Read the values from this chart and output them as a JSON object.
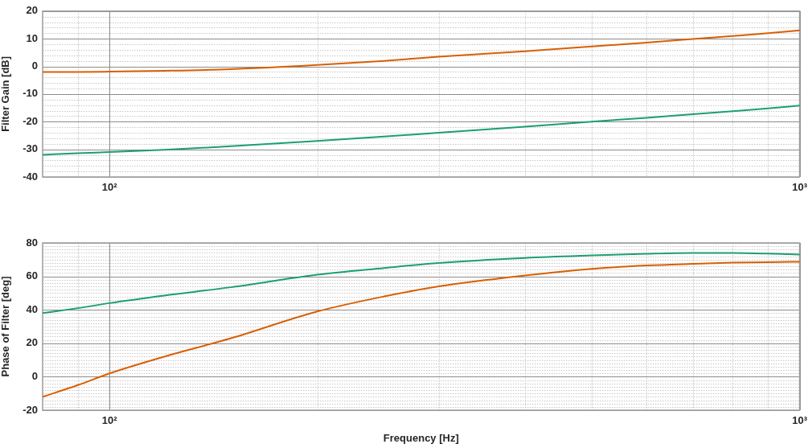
{
  "chart_data": [
    {
      "type": "line",
      "ylabel": "Filter Gain [dB]",
      "log": "x",
      "grid": true,
      "legend": false,
      "marker": "none",
      "line_style": "solid",
      "x": [
        80,
        90,
        100,
        120,
        150,
        200,
        250,
        300,
        400,
        500,
        600,
        700,
        800,
        900,
        1000
      ],
      "xlim": [
        80,
        1000
      ],
      "xticks": [
        {
          "value": 80,
          "label": null
        },
        {
          "value": 90,
          "label": null
        },
        {
          "value": 100,
          "label": "10²"
        },
        {
          "value": 200,
          "label": null
        },
        {
          "value": 300,
          "label": null
        },
        {
          "value": 400,
          "label": null
        },
        {
          "value": 500,
          "label": null
        },
        {
          "value": 600,
          "label": null
        },
        {
          "value": 700,
          "label": null
        },
        {
          "value": 800,
          "label": null
        },
        {
          "value": 900,
          "label": null
        },
        {
          "value": 1000,
          "label": "10³"
        }
      ],
      "ylim": [
        -40,
        20
      ],
      "yticks": [
        -40,
        {
          "value": -38,
          "label": null
        },
        {
          "value": -36,
          "label": null
        },
        {
          "value": -34,
          "label": null
        },
        {
          "value": -32,
          "label": null
        },
        -30,
        {
          "value": -28,
          "label": null
        },
        {
          "value": -26,
          "label": null
        },
        {
          "value": -24,
          "label": null
        },
        {
          "value": -22,
          "label": null
        },
        -20,
        {
          "value": -18,
          "label": null
        },
        {
          "value": -16,
          "label": null
        },
        {
          "value": -14,
          "label": null
        },
        {
          "value": -12,
          "label": null
        },
        -10,
        {
          "value": -8,
          "label": null
        },
        {
          "value": -6,
          "label": null
        },
        {
          "value": -4,
          "label": null
        },
        {
          "value": -2,
          "label": null
        },
        0,
        {
          "value": 2,
          "label": null
        },
        {
          "value": 4,
          "label": null
        },
        {
          "value": 6,
          "label": null
        },
        {
          "value": 8,
          "label": null
        },
        10,
        {
          "value": 12,
          "label": null
        },
        {
          "value": 14,
          "label": null
        },
        {
          "value": 16,
          "label": null
        },
        {
          "value": 18,
          "label": null
        },
        20
      ],
      "series": [
        {
          "color": "#d95f02",
          "values": [
            -2,
            -2,
            -1.9,
            -1.6,
            -1,
            0.5,
            2,
            3.5,
            5.5,
            7.2,
            8.6,
            9.9,
            11,
            12,
            13
          ]
        },
        {
          "color": "#1b9e77",
          "values": [
            -32,
            -31.4,
            -31,
            -30.2,
            -28.9,
            -27,
            -25.4,
            -24,
            -21.8,
            -20,
            -18.6,
            -17.3,
            -16.2,
            -15.2,
            -14.2
          ]
        }
      ]
    },
    {
      "type": "line",
      "xlabel": "Frequency [Hz]",
      "ylabel": "Phase of Filter [deg]",
      "log": "x",
      "grid": true,
      "legend": false,
      "marker": "none",
      "line_style": "solid",
      "x": [
        80,
        90,
        100,
        120,
        150,
        200,
        250,
        300,
        400,
        500,
        600,
        700,
        800,
        900,
        1000
      ],
      "xlim": [
        80,
        1000
      ],
      "xticks": [
        {
          "value": 80,
          "label": null
        },
        {
          "value": 90,
          "label": null
        },
        {
          "value": 100,
          "label": "10²"
        },
        {
          "value": 200,
          "label": null
        },
        {
          "value": 300,
          "label": null
        },
        {
          "value": 400,
          "label": null
        },
        {
          "value": 500,
          "label": null
        },
        {
          "value": 600,
          "label": null
        },
        {
          "value": 700,
          "label": null
        },
        {
          "value": 800,
          "label": null
        },
        {
          "value": 900,
          "label": null
        },
        {
          "value": 1000,
          "label": "10³"
        }
      ],
      "ylim": [
        -20,
        80
      ],
      "yticks": [
        -20,
        {
          "value": -18,
          "label": null
        },
        {
          "value": -16,
          "label": null
        },
        {
          "value": -14,
          "label": null
        },
        {
          "value": -12,
          "label": null
        },
        {
          "value": -10,
          "label": null
        },
        {
          "value": -8,
          "label": null
        },
        {
          "value": -6,
          "label": null
        },
        {
          "value": -4,
          "label": null
        },
        {
          "value": -2,
          "label": null
        },
        0,
        {
          "value": 2,
          "label": null
        },
        {
          "value": 4,
          "label": null
        },
        {
          "value": 6,
          "label": null
        },
        {
          "value": 8,
          "label": null
        },
        {
          "value": 10,
          "label": null
        },
        {
          "value": 12,
          "label": null
        },
        {
          "value": 14,
          "label": null
        },
        {
          "value": 16,
          "label": null
        },
        {
          "value": 18,
          "label": null
        },
        20,
        {
          "value": 22,
          "label": null
        },
        {
          "value": 24,
          "label": null
        },
        {
          "value": 26,
          "label": null
        },
        {
          "value": 28,
          "label": null
        },
        {
          "value": 30,
          "label": null
        },
        {
          "value": 32,
          "label": null
        },
        {
          "value": 34,
          "label": null
        },
        {
          "value": 36,
          "label": null
        },
        {
          "value": 38,
          "label": null
        },
        40,
        {
          "value": 42,
          "label": null
        },
        {
          "value": 44,
          "label": null
        },
        {
          "value": 46,
          "label": null
        },
        {
          "value": 48,
          "label": null
        },
        {
          "value": 50,
          "label": null
        },
        {
          "value": 52,
          "label": null
        },
        {
          "value": 54,
          "label": null
        },
        {
          "value": 56,
          "label": null
        },
        {
          "value": 58,
          "label": null
        },
        60,
        {
          "value": 62,
          "label": null
        },
        {
          "value": 64,
          "label": null
        },
        {
          "value": 66,
          "label": null
        },
        {
          "value": 68,
          "label": null
        },
        {
          "value": 70,
          "label": null
        },
        {
          "value": 72,
          "label": null
        },
        {
          "value": 74,
          "label": null
        },
        {
          "value": 76,
          "label": null
        },
        {
          "value": 78,
          "label": null
        },
        80
      ],
      "series": [
        {
          "color": "#1b9e77",
          "values": [
            38,
            41,
            44,
            48.5,
            53.5,
            61,
            65,
            68,
            71,
            72.5,
            73.5,
            74,
            74,
            73.6,
            73
          ]
        },
        {
          "color": "#d95f02",
          "values": [
            -12,
            -5,
            2,
            12,
            23,
            39,
            48,
            54,
            60.5,
            64.5,
            66.5,
            67.5,
            68.2,
            68.5,
            68.7
          ]
        }
      ]
    }
  ]
}
